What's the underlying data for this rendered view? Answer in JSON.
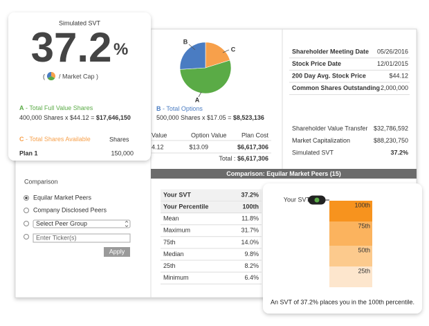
{
  "svt_card": {
    "title": "Simulated SVT",
    "value": "37.2",
    "unit": "%",
    "formula": {
      "open": "(",
      "rest": "/ Market Cap )"
    },
    "full_value": {
      "letter": "A",
      "title": "- Total Full Value Shares",
      "formula": "400,000 Shares x $44.12 =",
      "total": {
        "value": 17646150,
        "label": "$17,646,150"
      }
    },
    "available": {
      "letter": "C",
      "title": "- Total Shares Available",
      "column": "Shares",
      "rows": [
        [
          "Plan 1",
          "150,000"
        ]
      ]
    }
  },
  "options": {
    "letter": "B",
    "title": "- Total Options",
    "formula": "500,000 Shares x $17.05 =",
    "total": {
      "value": 8523136,
      "label": "$8,523,136"
    },
    "table": {
      "header": [
        "Value",
        "Option Value",
        "Plan Cost"
      ],
      "rows": [
        [
          "4.12",
          "$13.09",
          "$6,617,306"
        ]
      ],
      "total_label": "Total :",
      "total": {
        "value": 6617306,
        "label": "$6,617,306"
      }
    }
  },
  "pie_colors": {
    "full_value": "#5aab46",
    "options": "#4a7cc2",
    "available": "#f7a04b"
  },
  "company": {
    "rows": [
      [
        "Shareholder Meeting Date",
        "05/26/2016"
      ],
      [
        "Stock Price Date",
        "12/01/2015"
      ],
      [
        "200 Day Avg. Stock Price",
        "$44.12"
      ],
      [
        "Common Shares Outstanding",
        "2,000,000"
      ]
    ],
    "results": [
      [
        "Shareholder Value Transfer",
        "$32,786,592"
      ],
      [
        "Market Capitalization",
        "$88,230,750"
      ],
      [
        "Simulated SVT",
        "37.2%"
      ]
    ]
  },
  "comparison_panel": {
    "title": "Comparison",
    "options": [
      "Equilar Market Peers",
      "Company Disclosed Peers"
    ],
    "select": "Select Peer Group",
    "input": "Enter Ticker(s)",
    "button": "Apply"
  },
  "peer_table": {
    "title": "Comparison: Equilar Market Peers (15)",
    "rows": [
      [
        "Your SVT",
        "37.2%"
      ],
      [
        "Your Percentile",
        "100th"
      ],
      [
        "Mean",
        "11.8%"
      ],
      [
        "Maximum",
        "31.7%"
      ],
      [
        "75th",
        "14.0%"
      ],
      [
        "Median",
        "9.8%"
      ],
      [
        "25th",
        "8.2%"
      ],
      [
        "Minimum",
        "6.4%"
      ]
    ]
  },
  "percentile": {
    "marker": "Your SVT",
    "bands": [
      "100th",
      "75th",
      "50th",
      "25th"
    ],
    "caption": "An SVT of 37.2% places you in the 100th percentile."
  }
}
